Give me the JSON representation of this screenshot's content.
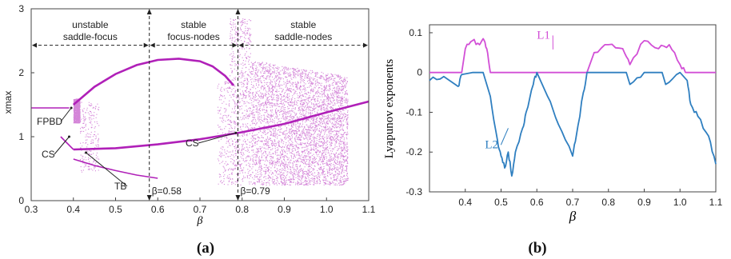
{
  "chart_data": [
    {
      "panel": "(a)",
      "type": "scatter",
      "title": "",
      "xlabel": "β",
      "ylabel": "xmax",
      "xlim": [
        0.3,
        1.1
      ],
      "ylim": [
        0,
        3
      ],
      "xticks": [
        "0.3",
        "0.4",
        "0.5",
        "0.6",
        "0.7",
        "0.8",
        "0.9",
        "1.0",
        "1.1"
      ],
      "yticks": [
        "0",
        "1",
        "2",
        "3"
      ],
      "color": "#b020b8",
      "regions": [
        {
          "lines": [
            "unstable",
            "saddle-focus"
          ],
          "x_from": 0.3,
          "x_to": 0.58
        },
        {
          "lines": [
            "stable",
            "focus-nodes"
          ],
          "x_from": 0.58,
          "x_to": 0.79
        },
        {
          "lines": [
            "stable",
            "saddle-nodes"
          ],
          "x_from": 0.79,
          "x_to": 1.1
        }
      ],
      "boundaries": [
        {
          "x": 0.58,
          "label": "β=0.58"
        },
        {
          "x": 0.79,
          "label": "β=0.79"
        }
      ],
      "annotations": [
        {
          "text": "FPBD",
          "at": [
            0.39,
            1.45
          ]
        },
        {
          "text": "CS",
          "at": [
            0.38,
            0.95
          ]
        },
        {
          "text": "TB",
          "at": [
            0.44,
            0.75
          ]
        },
        {
          "text": "CS",
          "at": [
            0.76,
            1.02
          ]
        }
      ],
      "series": [
        {
          "values_x": [
            0.3,
            0.34,
            0.37,
            0.39
          ],
          "values_y": [
            1.45,
            1.45,
            1.45,
            1.45
          ]
        },
        {
          "values_x": [
            0.37,
            0.4
          ],
          "values_y": [
            1.0,
            0.8
          ]
        },
        {
          "values_x": [
            0.4,
            0.45,
            0.5,
            0.55,
            0.6,
            0.65,
            0.7,
            0.73,
            0.76,
            0.78
          ],
          "values_y": [
            1.5,
            1.78,
            1.98,
            2.12,
            2.2,
            2.22,
            2.18,
            2.1,
            1.95,
            1.8
          ]
        },
        {
          "values_x": [
            0.4,
            0.5,
            0.6,
            0.7,
            0.8,
            0.9,
            1.0,
            1.1
          ],
          "values_y": [
            0.8,
            0.82,
            0.88,
            0.96,
            1.07,
            1.2,
            1.38,
            1.55
          ]
        },
        {
          "values_x": [
            0.4,
            0.45,
            0.5,
            0.55,
            0.6
          ],
          "values_y": [
            0.65,
            0.55,
            0.47,
            0.4,
            0.35
          ]
        }
      ]
    },
    {
      "panel": "(b)",
      "type": "line",
      "title": "",
      "xlabel": "β",
      "ylabel": "Lyapunov exponents",
      "xlim": [
        0.3,
        1.1
      ],
      "ylim": [
        -0.3,
        0.12
      ],
      "xticks": [
        "0.4",
        "0.5",
        "0.6",
        "0.7",
        "0.8",
        "0.9",
        "1.0",
        "1.1"
      ],
      "yticks": [
        "0.1",
        "0",
        "-0.1",
        "-0.2",
        "-0.3"
      ],
      "series": [
        {
          "name": "L1",
          "color": "#d24fd6",
          "x": [
            0.3,
            0.39,
            0.4,
            0.42,
            0.44,
            0.45,
            0.46,
            0.47,
            0.6,
            0.74,
            0.76,
            0.8,
            0.84,
            0.86,
            0.9,
            0.94,
            0.97,
            1.0,
            1.02,
            1.1
          ],
          "y": [
            0,
            0,
            0.06,
            0.08,
            0.07,
            0.085,
            0.06,
            0,
            0,
            0,
            0.05,
            0.07,
            0.06,
            0.02,
            0.08,
            0.06,
            0.07,
            0.02,
            0,
            0
          ]
        },
        {
          "name": "L2",
          "color": "#2f7fc0",
          "x": [
            0.3,
            0.34,
            0.38,
            0.39,
            0.42,
            0.45,
            0.47,
            0.49,
            0.5,
            0.51,
            0.52,
            0.53,
            0.54,
            0.56,
            0.57,
            0.59,
            0.6,
            0.63,
            0.66,
            0.7,
            0.71,
            0.73,
            0.74,
            0.8,
            0.85,
            0.86,
            0.9,
            0.95,
            0.96,
            1.0,
            1.02,
            1.03,
            1.05,
            1.08,
            1.1
          ],
          "y": [
            -0.02,
            -0.01,
            -0.035,
            -0.005,
            0,
            0,
            -0.06,
            -0.17,
            -0.21,
            -0.24,
            -0.2,
            -0.26,
            -0.2,
            -0.14,
            -0.1,
            -0.03,
            0,
            -0.06,
            -0.13,
            -0.21,
            -0.16,
            -0.05,
            0,
            0,
            0,
            -0.03,
            0,
            0,
            -0.03,
            0,
            -0.02,
            -0.08,
            -0.11,
            -0.16,
            -0.23
          ]
        }
      ],
      "labels": [
        {
          "text": "L1",
          "at": [
            0.65,
            0.07
          ]
        },
        {
          "text": "L2",
          "at": [
            0.51,
            -0.16
          ]
        }
      ]
    }
  ]
}
